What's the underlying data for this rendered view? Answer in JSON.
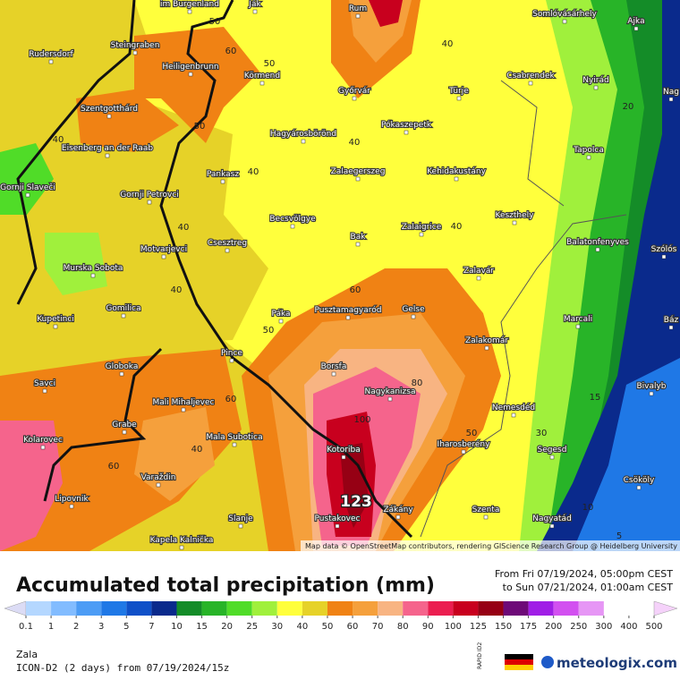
{
  "map": {
    "places": [
      "im Burgenland",
      "Ják",
      "Rum",
      "Somlóvásárhely",
      "Ajka",
      "Steingraben",
      "Rudersdorf",
      "Heiligenbrunn",
      "Körmend",
      "Győrvár",
      "Türje",
      "Csabrendek",
      "Nyirád",
      "Nag",
      "Szentgotthárd",
      "Pókaszepetk",
      "Hagyárosbörönd",
      "Eisenberg an der Raab",
      "Tapolca",
      "Pankasz",
      "Zalaegerszeg",
      "Kehidakustány",
      "Gornji Slaveči",
      "Gornji Petrovci",
      "Keszthely",
      "Becsvölgye",
      "Zalaigrice",
      "Bak",
      "Csesztreg",
      "Motvarjevci",
      "Balatonfenyves",
      "Szólós",
      "Murska Sobota",
      "Zalavár",
      "Kupetinci",
      "Gomilica",
      "Páka",
      "Pusztamagyaród",
      "Gelse",
      "Marcali",
      "Báz",
      "Zalakomár",
      "Pince",
      "Globoka",
      "Borsfa",
      "Savci",
      "Nagykanizsa",
      "Bivalyb",
      "Mali Mihaljevec",
      "Nemesdéd",
      "Grabe",
      "Mala Subotica",
      "Iharosberény",
      "Kolarovec",
      "Kotoriba",
      "Segesd",
      "Varaždin",
      "Csököly",
      "Lipovnik",
      "Slanje",
      "Zákány",
      "Pustakovec",
      "Szenta",
      "Nagyatád",
      "Kapela Kalnička"
    ],
    "contour_labels": [
      "50",
      "60",
      "40",
      "50",
      "40",
      "50",
      "40",
      "40",
      "20",
      "40",
      "40",
      "40",
      "60",
      "50",
      "80",
      "15",
      "60",
      "100",
      "50",
      "30",
      "40",
      "60",
      "10",
      "5"
    ],
    "max_label": "123",
    "attribution": "Map data © OpenStreetMap contributors, rendering GIScience Research Group @ Heidelberg University"
  },
  "header": {
    "title": "Accumulated total precipitation (mm)",
    "period_from": "From Fri 07/19/2024, 05:00pm CEST",
    "period_to": "to Sun 07/21/2024, 01:00am CEST"
  },
  "legend": {
    "ticks": [
      0.1,
      1,
      2,
      3,
      5,
      7,
      10,
      15,
      20,
      25,
      30,
      40,
      50,
      60,
      70,
      80,
      90,
      100,
      125,
      150,
      175,
      200,
      250,
      300,
      400,
      500
    ],
    "colors": [
      "#dcdcf5",
      "#b4d7ff",
      "#82bcff",
      "#4c9cf5",
      "#1f78e6",
      "#0f50c8",
      "#0a2a8c",
      "#148c28",
      "#28b428",
      "#50dc28",
      "#a0f03c",
      "#ffff3c",
      "#e6d228",
      "#f08214",
      "#f5a03c",
      "#f8b482",
      "#f5648c",
      "#eb1e50",
      "#c8001e",
      "#960014",
      "#6e0a78",
      "#a01ee6",
      "#d250f0",
      "#e696f5",
      "#f5d2fa"
    ]
  },
  "footer": {
    "region": "Zala",
    "model": "ICON-D2 (2 days) from 07/19/2024/15z",
    "badge": "RAPID ID2",
    "brand": "meteologix.com"
  }
}
